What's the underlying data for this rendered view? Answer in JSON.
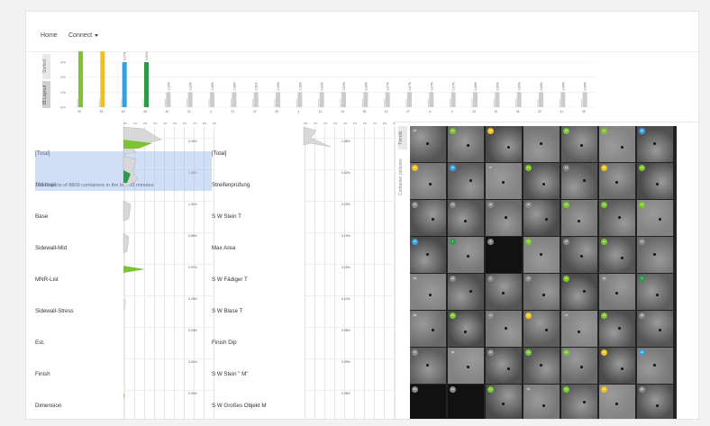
{
  "nav": {
    "home": "Home",
    "connect": "Connect"
  },
  "top_chart": {
    "side_tabs": [
      "Sorted",
      "IB Layout"
    ],
    "y_ticks": [
      "3%",
      "2%",
      "1%",
      "0%"
    ],
    "bars": [
      {
        "label": "20",
        "value": 0.05,
        "pct": "0.49%",
        "color": "#7cc433"
      },
      {
        "label": "33",
        "value": 0.04,
        "pct": "0.38%",
        "color": "#f0c020"
      },
      {
        "label": "40",
        "value": 0.03,
        "pct": "0.27%",
        "color": "#39a0e0"
      },
      {
        "label": "45",
        "value": 0.03,
        "pct": "0.32%",
        "color": "#2e9a49"
      },
      {
        "label": "40",
        "value": 0.01,
        "pct": "0.19%",
        "color": "#cccccc"
      },
      {
        "label": "21",
        "value": 0.01,
        "pct": "0.19%",
        "color": "#cccccc"
      },
      {
        "label": "4",
        "value": 0.01,
        "pct": "0.16%",
        "color": "#cccccc"
      },
      {
        "label": "37",
        "value": 0.01,
        "pct": "0.16%",
        "color": "#cccccc"
      },
      {
        "label": "47",
        "value": 0.01,
        "pct": "0.11%",
        "color": "#cccccc"
      },
      {
        "label": "29",
        "value": 0.01,
        "pct": "0.10%",
        "color": "#cccccc"
      },
      {
        "label": "1",
        "value": 0.01,
        "pct": "0.10%",
        "color": "#cccccc"
      },
      {
        "label": "12",
        "value": 0.01,
        "pct": "0.09%",
        "color": "#cccccc"
      },
      {
        "label": "14",
        "value": 0.01,
        "pct": "0.09%",
        "color": "#cccccc"
      },
      {
        "label": "35",
        "value": 0.01,
        "pct": "0.08%",
        "color": "#cccccc"
      },
      {
        "label": "10",
        "value": 0.01,
        "pct": "0.07%",
        "color": "#cccccc"
      },
      {
        "label": "27",
        "value": 0.01,
        "pct": "0.07%",
        "color": "#cccccc"
      },
      {
        "label": "6",
        "value": 0.01,
        "pct": "0.07%",
        "color": "#cccccc"
      },
      {
        "label": "0",
        "value": 0.01,
        "pct": "0.07%",
        "color": "#cccccc"
      },
      {
        "label": "23",
        "value": 0.01,
        "pct": "0.06%",
        "color": "#cccccc"
      },
      {
        "label": "31",
        "value": 0.01,
        "pct": "0.06%",
        "color": "#cccccc"
      },
      {
        "label": "34",
        "value": 0.01,
        "pct": "0.06%",
        "color": "#cccccc"
      },
      {
        "label": "32",
        "value": 0.01,
        "pct": "0.06%",
        "color": "#cccccc"
      },
      {
        "label": "41",
        "value": 0.01,
        "pct": "0.06%",
        "color": "#cccccc"
      },
      {
        "label": "28",
        "value": 0.01,
        "pct": "0.06%",
        "color": "#cccccc"
      }
    ]
  },
  "spark_scale": [
    "0%",
    "1%",
    "2%",
    "3%",
    "4%",
    "5%",
    "6%",
    "7%",
    "8%",
    "9%"
  ],
  "left_list": {
    "items": [
      "[Total]",
      "Sidewall",
      "Base",
      "Sidewall-Mid",
      "MNR-List",
      "Sidewall-Stress",
      "Est.",
      "Finish",
      "Dimension"
    ],
    "pcts": [
      "3.42%",
      "1.88%",
      "1.01%",
      "0.85%",
      "0.57%",
      "0.28%",
      "0.03%",
      "0.01%",
      "0.00%"
    ],
    "highlight_subtitle": "166 Rejects of 8809 containers in the last 60 minutes"
  },
  "mid_list": {
    "items": [
      "[Total]",
      "Streifenprüfung",
      "S W Stein T",
      "Max Area",
      "S W Fädiger T",
      "S W Blase T",
      "Finish Dip",
      "S W Stein \" M\"",
      "S W Großes Objekt M"
    ],
    "pcts": [
      "1.06%",
      "0.52%",
      "0.23%",
      "0.19%",
      "0.15%",
      "0.14%",
      "0.08%",
      "0.09%",
      "0.08%"
    ]
  },
  "gallery": {
    "tabs": [
      "Trends",
      "Container pictures"
    ],
    "badges": [
      [
        "15",
        "11",
        "20",
        "",
        "13",
        "11",
        "40"
      ],
      [
        "20",
        "40",
        "47",
        "13",
        "14",
        "20",
        "41"
      ],
      [
        "10",
        "21",
        "46",
        "24",
        "13",
        "11",
        "13"
      ],
      [
        "40",
        "1",
        "6",
        "13",
        "24",
        "11",
        "10"
      ],
      [
        "25",
        "16",
        "6",
        "47",
        "11",
        "31",
        "1"
      ],
      [
        "36",
        "13",
        "14",
        "20",
        "47",
        "41",
        "28"
      ],
      [
        "37",
        "28",
        "15",
        "13",
        "11",
        "20",
        "40"
      ],
      [
        "10",
        "10",
        "11",
        "10",
        "11",
        "20",
        "26"
      ]
    ]
  },
  "colors": {
    "green": "#7cc433",
    "yellow": "#f0c020",
    "blue": "#39a0e0",
    "dark_green": "#2e9a49",
    "highlight": "#c9d9f2"
  }
}
